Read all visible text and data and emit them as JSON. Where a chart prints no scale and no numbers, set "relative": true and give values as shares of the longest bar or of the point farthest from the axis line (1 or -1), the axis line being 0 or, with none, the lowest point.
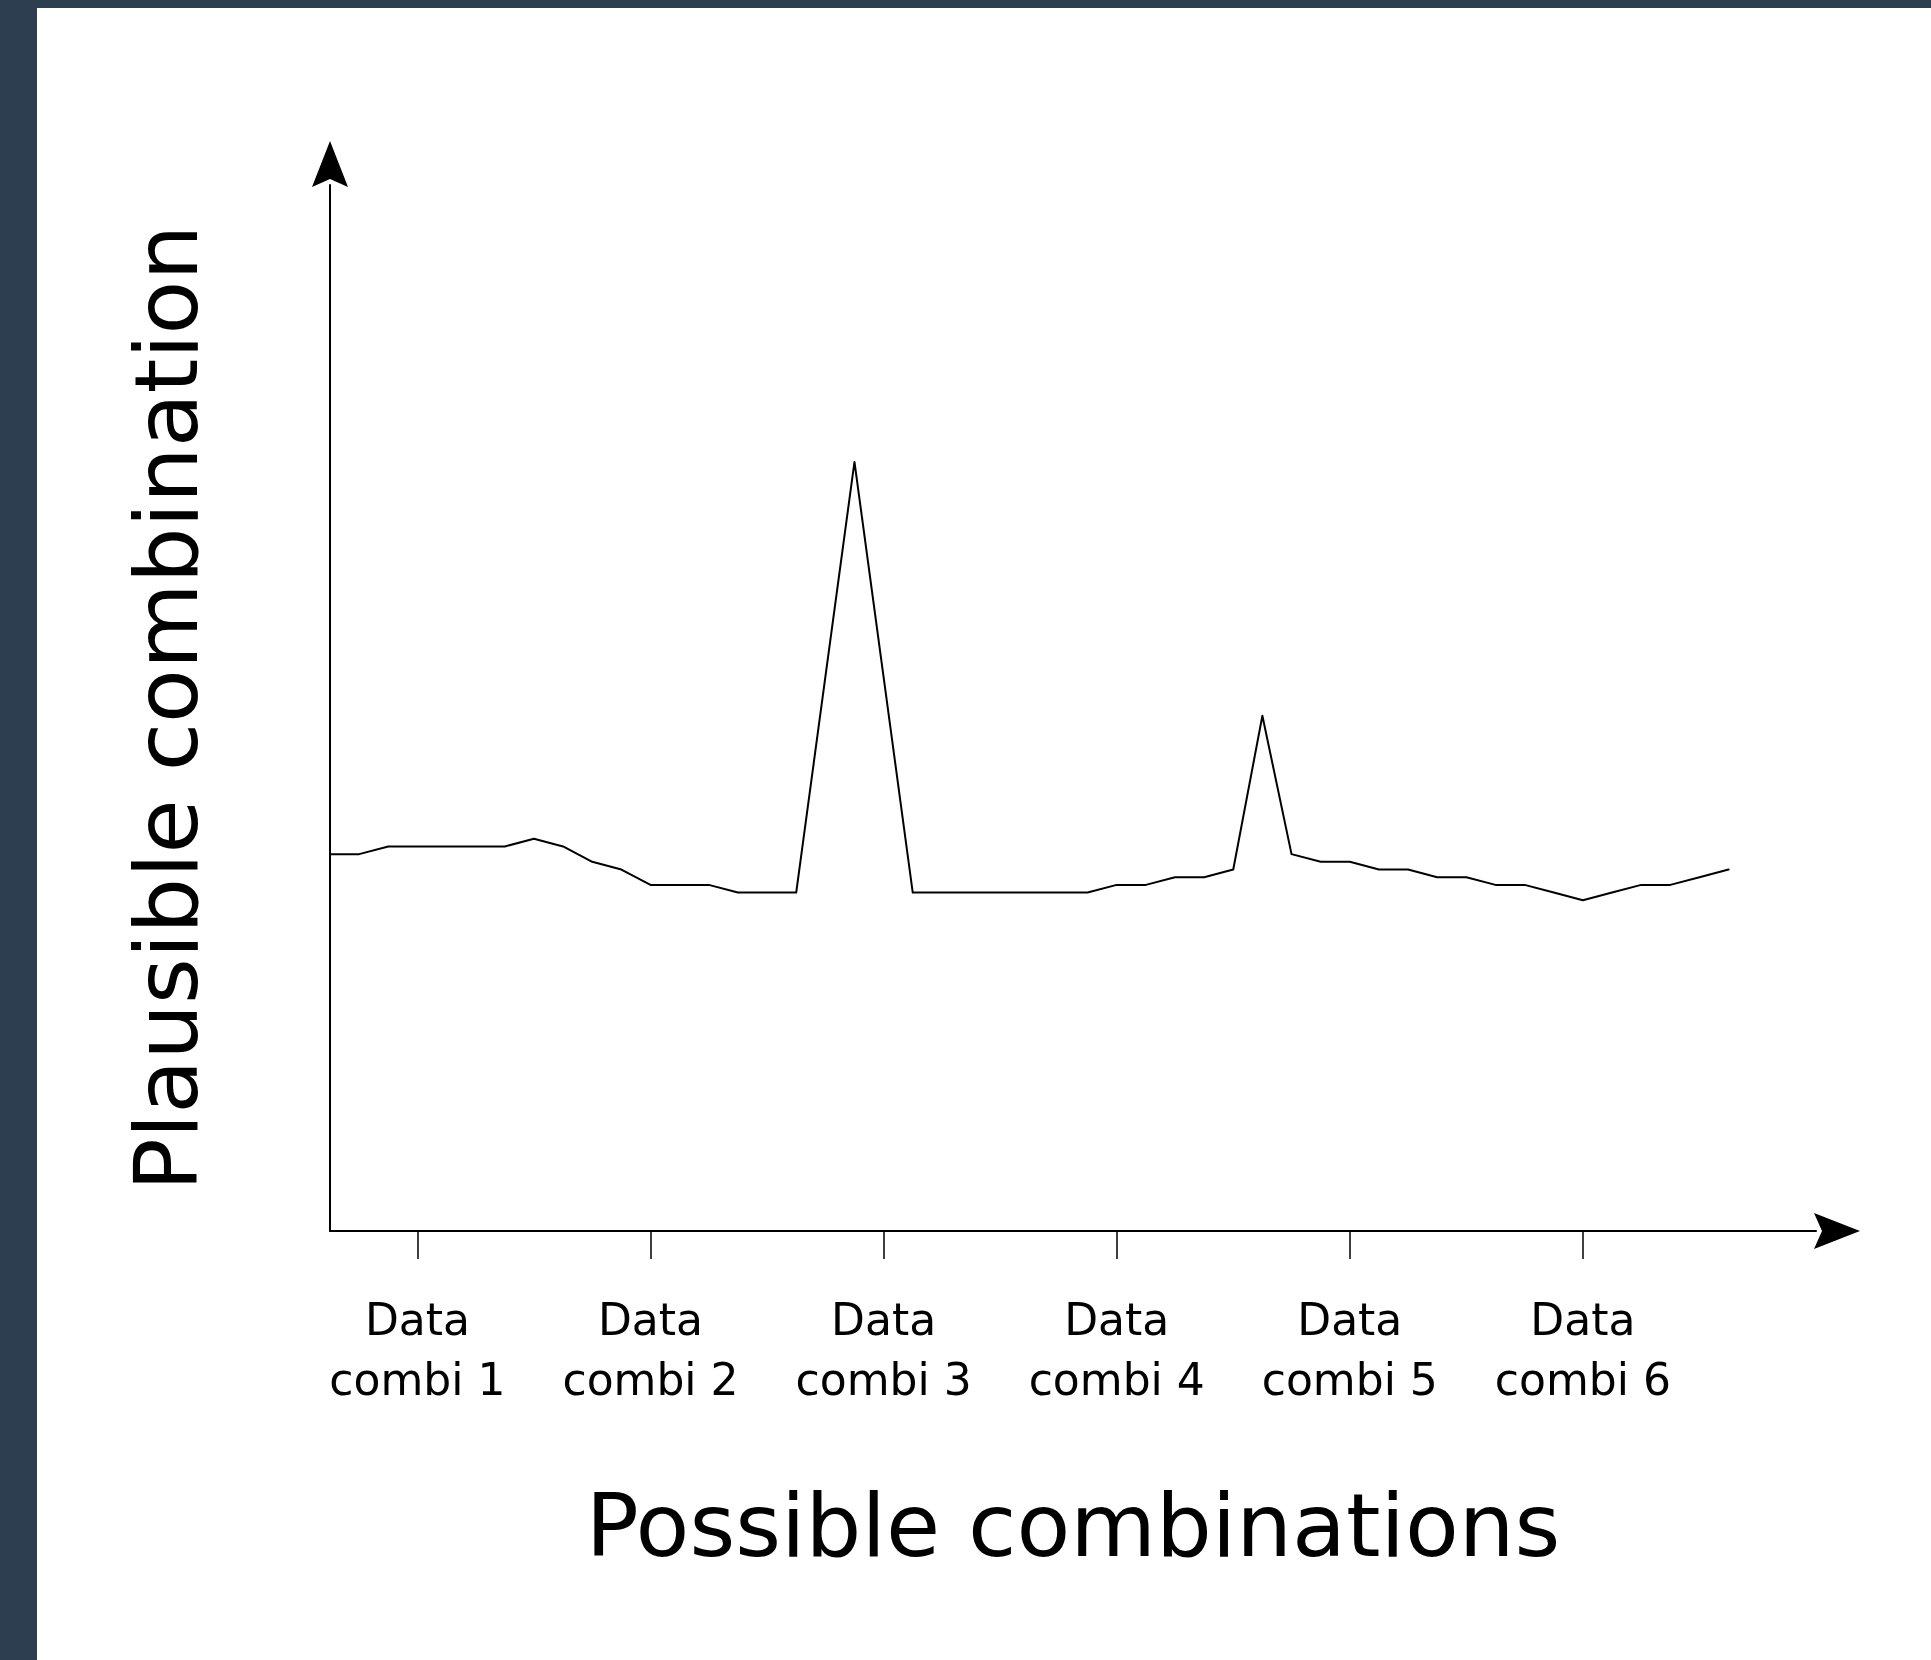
{
  "chart_data": {
    "type": "line",
    "xlabel": "Possible combinations",
    "ylabel": "Plausible combination",
    "relative": true,
    "tick_labels": "x",
    "grid": false,
    "marker": "none",
    "line_style": "solid",
    "categories": [
      null,
      null,
      null,
      "Data\ncombi 1",
      null,
      null,
      null,
      null,
      null,
      null,
      null,
      "Data\ncombi 2",
      null,
      null,
      null,
      null,
      null,
      null,
      null,
      "Data\ncombi 3",
      null,
      null,
      null,
      null,
      null,
      null,
      null,
      "Data\ncombi 4",
      null,
      null,
      null,
      null,
      null,
      null,
      null,
      "Data\ncombi 5",
      null,
      null,
      null,
      null,
      null,
      null,
      null,
      "Data\ncombi 6",
      null,
      null,
      null,
      null,
      null,
      null,
      null,
      null
    ],
    "series": [
      {
        "color": "#000000",
        "values": [
          0.49,
          0.49,
          0.5,
          0.5,
          0.5,
          0.5,
          0.5,
          0.51,
          0.5,
          0.48,
          0.47,
          0.45,
          0.45,
          0.45,
          0.44,
          0.44,
          0.44,
          0.72,
          1,
          0.72,
          0.44,
          0.44,
          0.44,
          0.44,
          0.44,
          0.44,
          0.44,
          0.45,
          0.45,
          0.46,
          0.46,
          0.47,
          0.67,
          0.49,
          0.48,
          0.48,
          0.47,
          0.47,
          0.46,
          0.46,
          0.45,
          0.45,
          0.44,
          0.43,
          0.44,
          0.45,
          0.45,
          0.46,
          0.47,
          null,
          null,
          null
        ]
      }
    ]
  }
}
